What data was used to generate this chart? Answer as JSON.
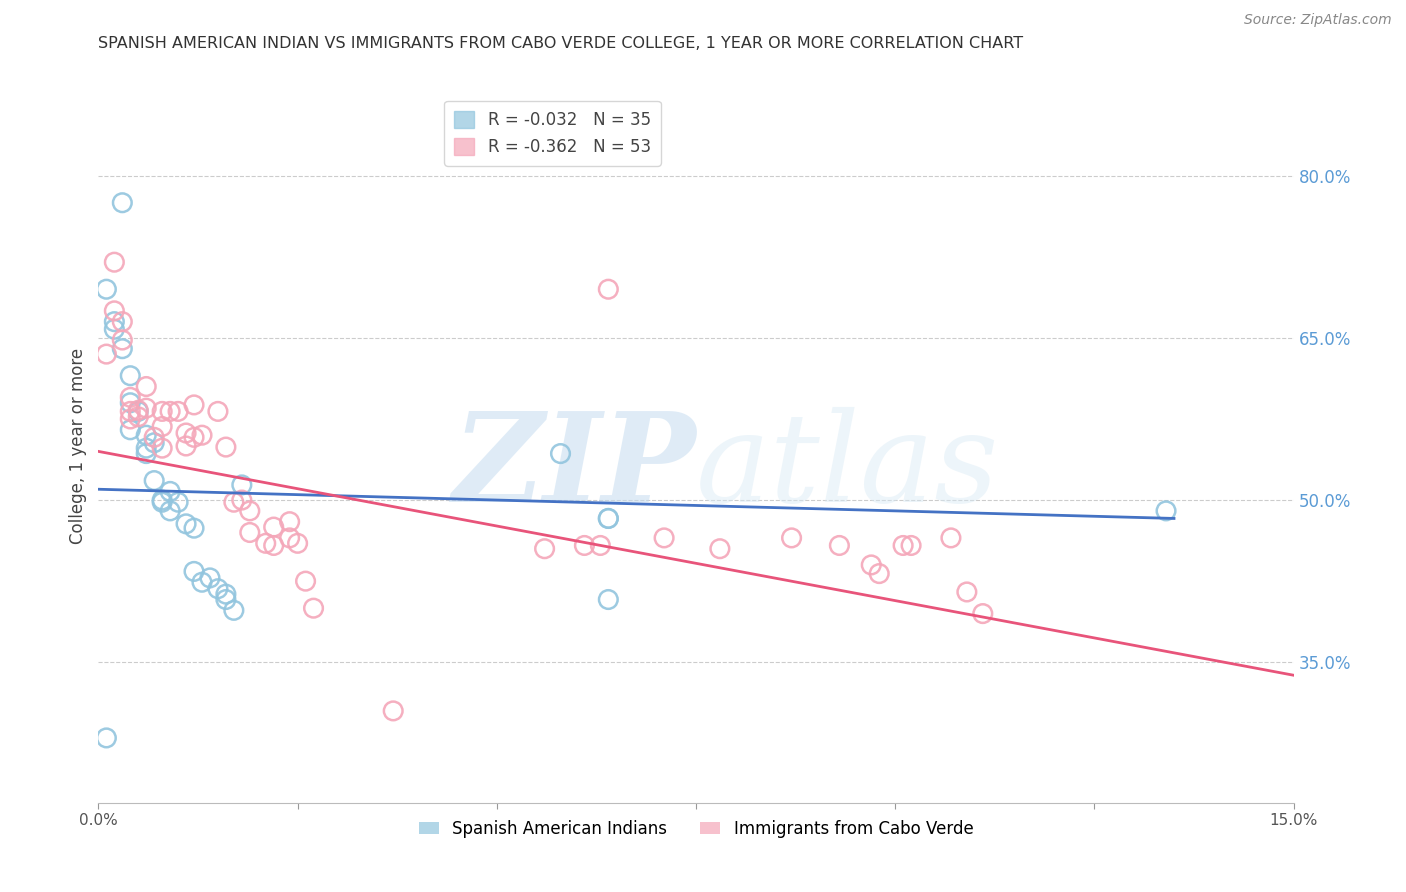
{
  "title": "SPANISH AMERICAN INDIAN VS IMMIGRANTS FROM CABO VERDE COLLEGE, 1 YEAR OR MORE CORRELATION CHART",
  "source": "Source: ZipAtlas.com",
  "ylabel": "College, 1 year or more",
  "xlabel": "",
  "xlim": [
    0.0,
    0.15
  ],
  "ylim": [
    0.22,
    0.88
  ],
  "yticks": [
    0.35,
    0.5,
    0.65,
    0.8
  ],
  "ytick_labels": [
    "35.0%",
    "50.0%",
    "65.0%",
    "80.0%"
  ],
  "xticks": [
    0.0,
    0.025,
    0.05,
    0.075,
    0.1,
    0.125,
    0.15
  ],
  "xtick_labels": [
    "0.0%",
    "",
    "",
    "",
    "",
    "",
    "15.0%"
  ],
  "series1_label": "Spanish American Indians",
  "series1_R": "-0.032",
  "series1_N": "35",
  "series1_color": "#92C5DE",
  "series1_line_color": "#4472C4",
  "series2_label": "Immigrants from Cabo Verde",
  "series2_R": "-0.362",
  "series2_N": "53",
  "series2_color": "#F4A7B9",
  "series2_line_color": "#E8547A",
  "watermark_zip": "ZIP",
  "watermark_atlas": "atlas",
  "background_color": "#ffffff",
  "grid_color": "#cccccc",
  "right_axis_color": "#5B9BD5",
  "series1_x": [
    0.003,
    0.001,
    0.002,
    0.002,
    0.003,
    0.004,
    0.004,
    0.005,
    0.004,
    0.006,
    0.006,
    0.006,
    0.007,
    0.007,
    0.008,
    0.008,
    0.009,
    0.009,
    0.01,
    0.011,
    0.012,
    0.012,
    0.013,
    0.014,
    0.015,
    0.016,
    0.016,
    0.017,
    0.018,
    0.058,
    0.064,
    0.064,
    0.064,
    0.134,
    0.001
  ],
  "series1_y": [
    0.775,
    0.695,
    0.665,
    0.658,
    0.64,
    0.615,
    0.59,
    0.582,
    0.565,
    0.56,
    0.548,
    0.543,
    0.553,
    0.518,
    0.5,
    0.498,
    0.508,
    0.49,
    0.498,
    0.478,
    0.474,
    0.434,
    0.424,
    0.428,
    0.418,
    0.408,
    0.413,
    0.398,
    0.514,
    0.543,
    0.483,
    0.483,
    0.408,
    0.49,
    0.28
  ],
  "series2_x": [
    0.001,
    0.002,
    0.002,
    0.003,
    0.003,
    0.004,
    0.004,
    0.004,
    0.005,
    0.005,
    0.006,
    0.006,
    0.007,
    0.008,
    0.008,
    0.008,
    0.009,
    0.01,
    0.011,
    0.011,
    0.012,
    0.012,
    0.013,
    0.015,
    0.016,
    0.017,
    0.018,
    0.019,
    0.019,
    0.021,
    0.022,
    0.022,
    0.024,
    0.024,
    0.025,
    0.026,
    0.027,
    0.056,
    0.061,
    0.063,
    0.071,
    0.078,
    0.087,
    0.093,
    0.097,
    0.098,
    0.101,
    0.102,
    0.107,
    0.109,
    0.111,
    0.064,
    0.037
  ],
  "series2_y": [
    0.635,
    0.72,
    0.675,
    0.665,
    0.648,
    0.595,
    0.582,
    0.575,
    0.583,
    0.577,
    0.605,
    0.585,
    0.558,
    0.548,
    0.568,
    0.582,
    0.582,
    0.582,
    0.562,
    0.55,
    0.588,
    0.558,
    0.56,
    0.582,
    0.549,
    0.498,
    0.5,
    0.49,
    0.47,
    0.46,
    0.458,
    0.475,
    0.48,
    0.465,
    0.46,
    0.425,
    0.4,
    0.455,
    0.458,
    0.458,
    0.465,
    0.455,
    0.465,
    0.458,
    0.44,
    0.432,
    0.458,
    0.458,
    0.465,
    0.415,
    0.395,
    0.695,
    0.305
  ],
  "series1_line_x0": 0.0,
  "series1_line_x1": 0.135,
  "series1_line_y0": 0.51,
  "series1_line_y1": 0.483,
  "series2_line_x0": 0.0,
  "series2_line_x1": 0.15,
  "series2_line_y0": 0.545,
  "series2_line_y1": 0.338
}
